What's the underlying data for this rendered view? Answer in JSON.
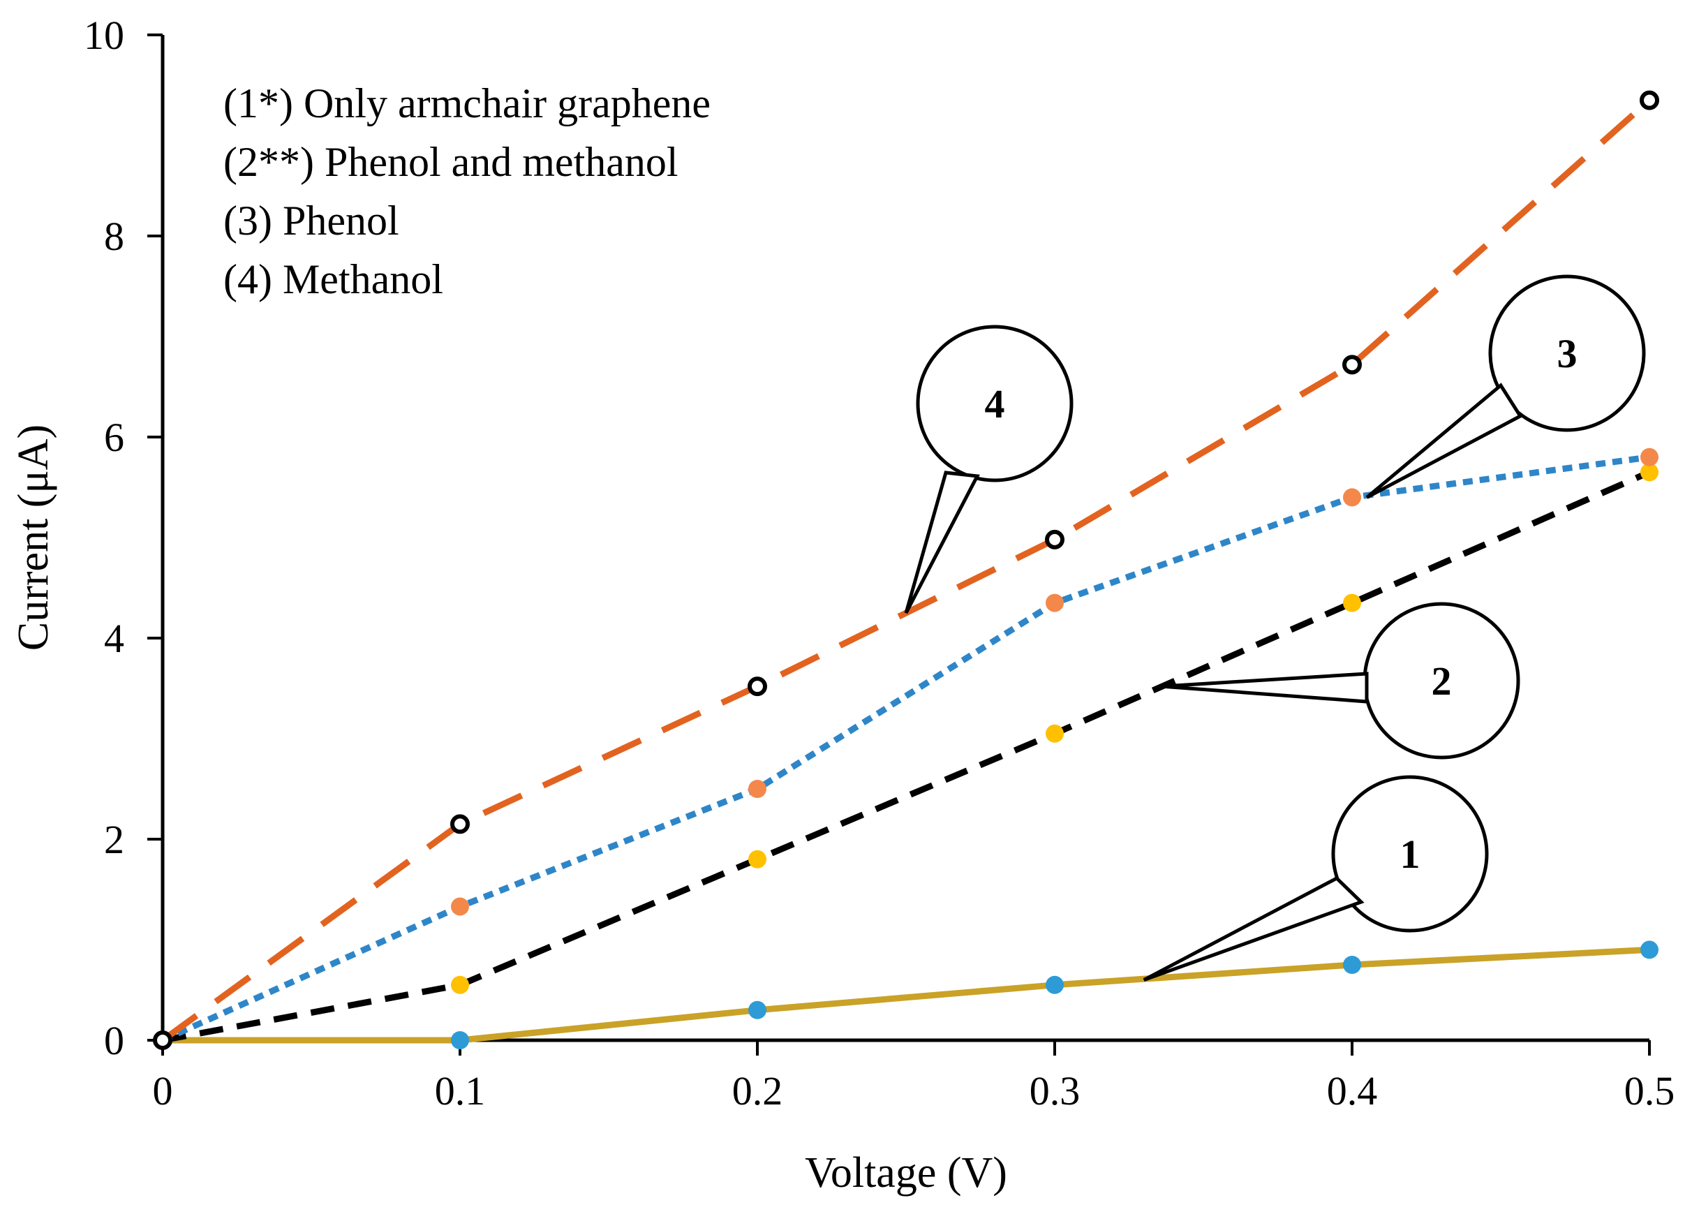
{
  "chart_data": {
    "type": "line",
    "title": "",
    "xlabel": "Voltage (V)",
    "ylabel": "Current (μA)",
    "xlim": [
      0,
      0.5
    ],
    "ylim": [
      0,
      10
    ],
    "x_ticks": [
      "0",
      "0.1",
      "0.2",
      "0.3",
      "0.4",
      "0.5"
    ],
    "y_ticks": [
      "0",
      "2",
      "4",
      "6",
      "8",
      "10"
    ],
    "x": [
      0,
      0.1,
      0.2,
      0.3,
      0.4,
      0.5
    ],
    "grid": false,
    "legend_text": [
      "(1*) Only armchair graphene",
      "(2**) Phenol and methanol",
      "(3) Phenol",
      "(4) Methanol"
    ],
    "series": [
      {
        "id": "1",
        "name": "Only armchair graphene",
        "callout": "1",
        "values": [
          0,
          0,
          0.3,
          0.55,
          0.75,
          0.9
        ],
        "line_color": "#C9A227",
        "marker_color": "#2E9BD6",
        "line_style": "solid",
        "marker": "dot"
      },
      {
        "id": "2",
        "name": "Phenol and methanol",
        "callout": "2",
        "values": [
          0,
          0.55,
          1.8,
          3.05,
          4.35,
          5.65
        ],
        "line_color": "#000000",
        "marker_color": "#FFC000",
        "line_style": "dashed",
        "marker": "dot"
      },
      {
        "id": "3",
        "name": "Phenol",
        "callout": "3",
        "values": [
          0,
          1.33,
          2.5,
          4.35,
          5.4,
          5.8
        ],
        "line_color": "#2E86C8",
        "marker_color": "#F4884A",
        "line_style": "short-dash",
        "marker": "dot"
      },
      {
        "id": "4",
        "name": "Methanol",
        "callout": "4",
        "values": [
          0,
          2.15,
          3.52,
          4.98,
          6.72,
          9.35
        ],
        "line_color": "#E2631F",
        "marker_color": "#000000",
        "line_style": "long-dash",
        "marker": "ring"
      }
    ]
  }
}
